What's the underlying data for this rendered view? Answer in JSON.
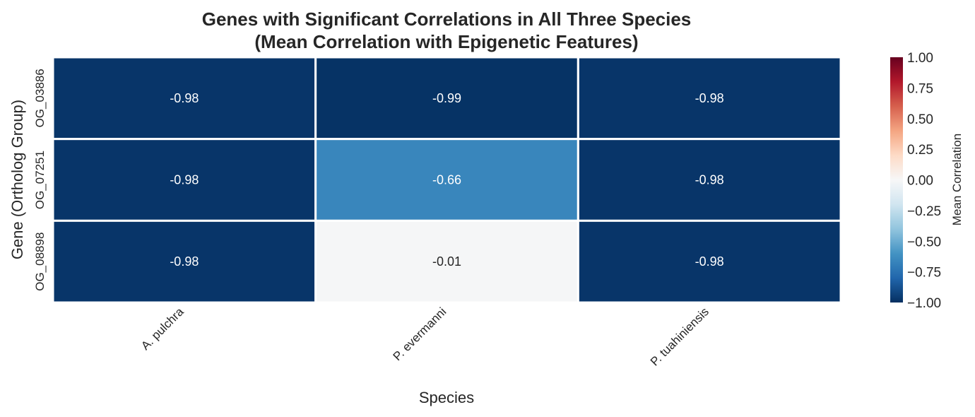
{
  "chart_data": {
    "type": "heatmap",
    "title": "Genes with Significant Correlations in All Three Species",
    "subtitle": "(Mean Correlation with Epigenetic Features)",
    "xlabel": "Species",
    "ylabel": "Gene (Ortholog Group)",
    "x": [
      "A. pulchra",
      "P. evermanni",
      "P. tuahiniensis"
    ],
    "y": [
      "OG_03886",
      "OG_07251",
      "OG_08898"
    ],
    "values": [
      [
        -0.98,
        -0.99,
        -0.98
      ],
      [
        -0.98,
        -0.66,
        -0.98
      ],
      [
        -0.98,
        -0.01,
        -0.98
      ]
    ],
    "value_labels": [
      [
        "-0.98",
        "-0.99",
        "-0.98"
      ],
      [
        "-0.98",
        "-0.66",
        "-0.98"
      ],
      [
        "-0.98",
        "-0.01",
        "-0.98"
      ]
    ],
    "colormap": "RdBu_r",
    "vmin": -1.0,
    "vmax": 1.0,
    "colorbar": {
      "label": "Mean Correlation",
      "ticks": [
        1.0,
        0.75,
        0.5,
        0.25,
        0.0,
        -0.25,
        -0.5,
        -0.75,
        -1.0
      ],
      "tick_labels": [
        "1.00",
        "0.75",
        "0.50",
        "0.25",
        "0.00",
        "−0.25",
        "−0.50",
        "−0.75",
        "−1.00"
      ],
      "placement": "right"
    },
    "grid": false
  }
}
